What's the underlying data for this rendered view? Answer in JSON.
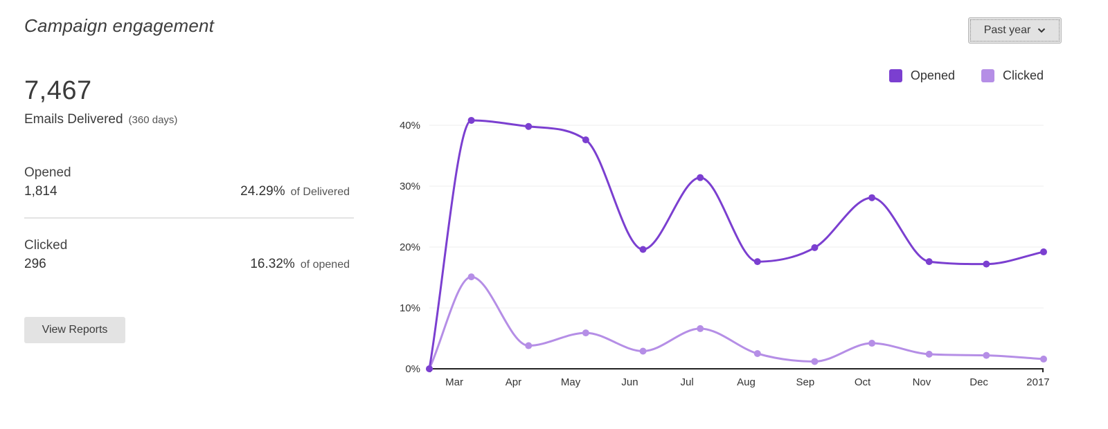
{
  "header": {
    "title": "Campaign engagement"
  },
  "range_select": {
    "value": "Past year"
  },
  "stats": {
    "delivered_count": "7,467",
    "delivered_label": "Emails Delivered",
    "delivered_days": "(360 days)",
    "opened": {
      "label": "Opened",
      "value": "1,814",
      "percent": "24.29%",
      "of_label": "of Delivered"
    },
    "clicked": {
      "label": "Clicked",
      "value": "296",
      "percent": "16.32%",
      "of_label": "of opened"
    }
  },
  "view_reports_label": "View Reports",
  "colors": {
    "opened": "#7b3fd0",
    "clicked": "#b58ee6"
  },
  "chart_data": {
    "type": "line",
    "title": "",
    "xlabel": "",
    "ylabel": "",
    "x_tick_labels": [
      "Mar",
      "Apr",
      "May",
      "Jun",
      "Jul",
      "Aug",
      "Sep",
      "Oct",
      "Nov",
      "Dec",
      "2017"
    ],
    "y_tick_labels": [
      "0%",
      "10%",
      "20%",
      "30%",
      "40%"
    ],
    "ylim": [
      0,
      40
    ],
    "grid": "horizontal",
    "legend_position": "top-right",
    "x": [
      "2016-02-18",
      "2016-03-11",
      "2016-04-10",
      "2016-05-10",
      "2016-06-09",
      "2016-07-09",
      "2016-08-08",
      "2016-09-07",
      "2016-10-07",
      "2016-11-06",
      "2016-12-06",
      "2017-01-05"
    ],
    "series": [
      {
        "name": "Opened",
        "values": [
          0,
          40.8,
          39.8,
          37.6,
          19.6,
          31.4,
          17.6,
          19.9,
          28.1,
          17.6,
          17.2,
          19.2
        ]
      },
      {
        "name": "Clicked",
        "values": [
          0,
          15.1,
          3.8,
          5.9,
          2.9,
          6.6,
          2.5,
          1.2,
          4.2,
          2.4,
          2.2,
          1.6
        ]
      }
    ]
  }
}
